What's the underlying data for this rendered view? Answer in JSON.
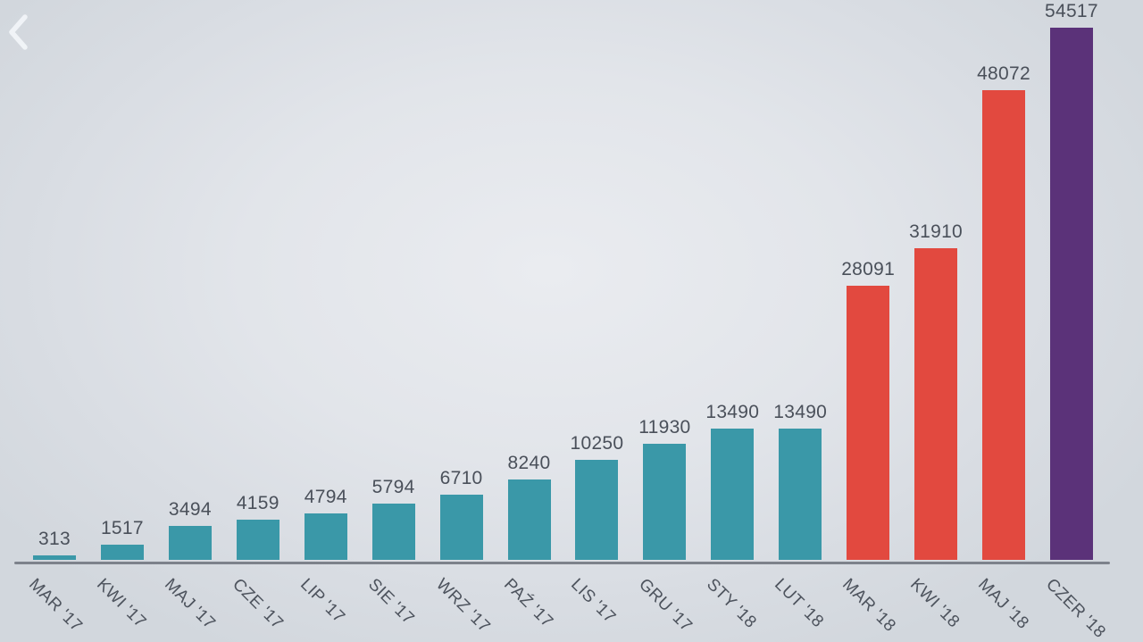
{
  "nav": {
    "back_icon": "chevron-left"
  },
  "chart_data": {
    "type": "bar",
    "title": "",
    "xlabel": "",
    "ylabel": "",
    "categories": [
      "MAR '17",
      "KWI '17",
      "MAJ '17",
      "CZE '17",
      "LIP '17",
      "SIE '17",
      "WRZ '17",
      "PAŹ '17",
      "LIS '17",
      "GRU '17",
      "STY '18",
      "LUT '18",
      "MAR '18",
      "KWI '18",
      "MAJ '18",
      "CZER '18"
    ],
    "values": [
      313,
      1517,
      3494,
      4159,
      4794,
      5794,
      6710,
      8240,
      10250,
      11930,
      13490,
      13490,
      28091,
      31910,
      48072,
      54517
    ],
    "bar_colors": [
      "teal",
      "teal",
      "teal",
      "teal",
      "teal",
      "teal",
      "teal",
      "teal",
      "teal",
      "teal",
      "teal",
      "teal",
      "red",
      "red",
      "red",
      "purple"
    ],
    "colors": {
      "teal": "#3a98a8",
      "red": "#e2493f",
      "purple": "#5b3279",
      "axis": "#7d828b",
      "label": "#4a505a"
    },
    "ylim": [
      0,
      54517
    ],
    "grid": false,
    "legend": "none",
    "data_labels": true,
    "x_tick_rotation": 45
  }
}
